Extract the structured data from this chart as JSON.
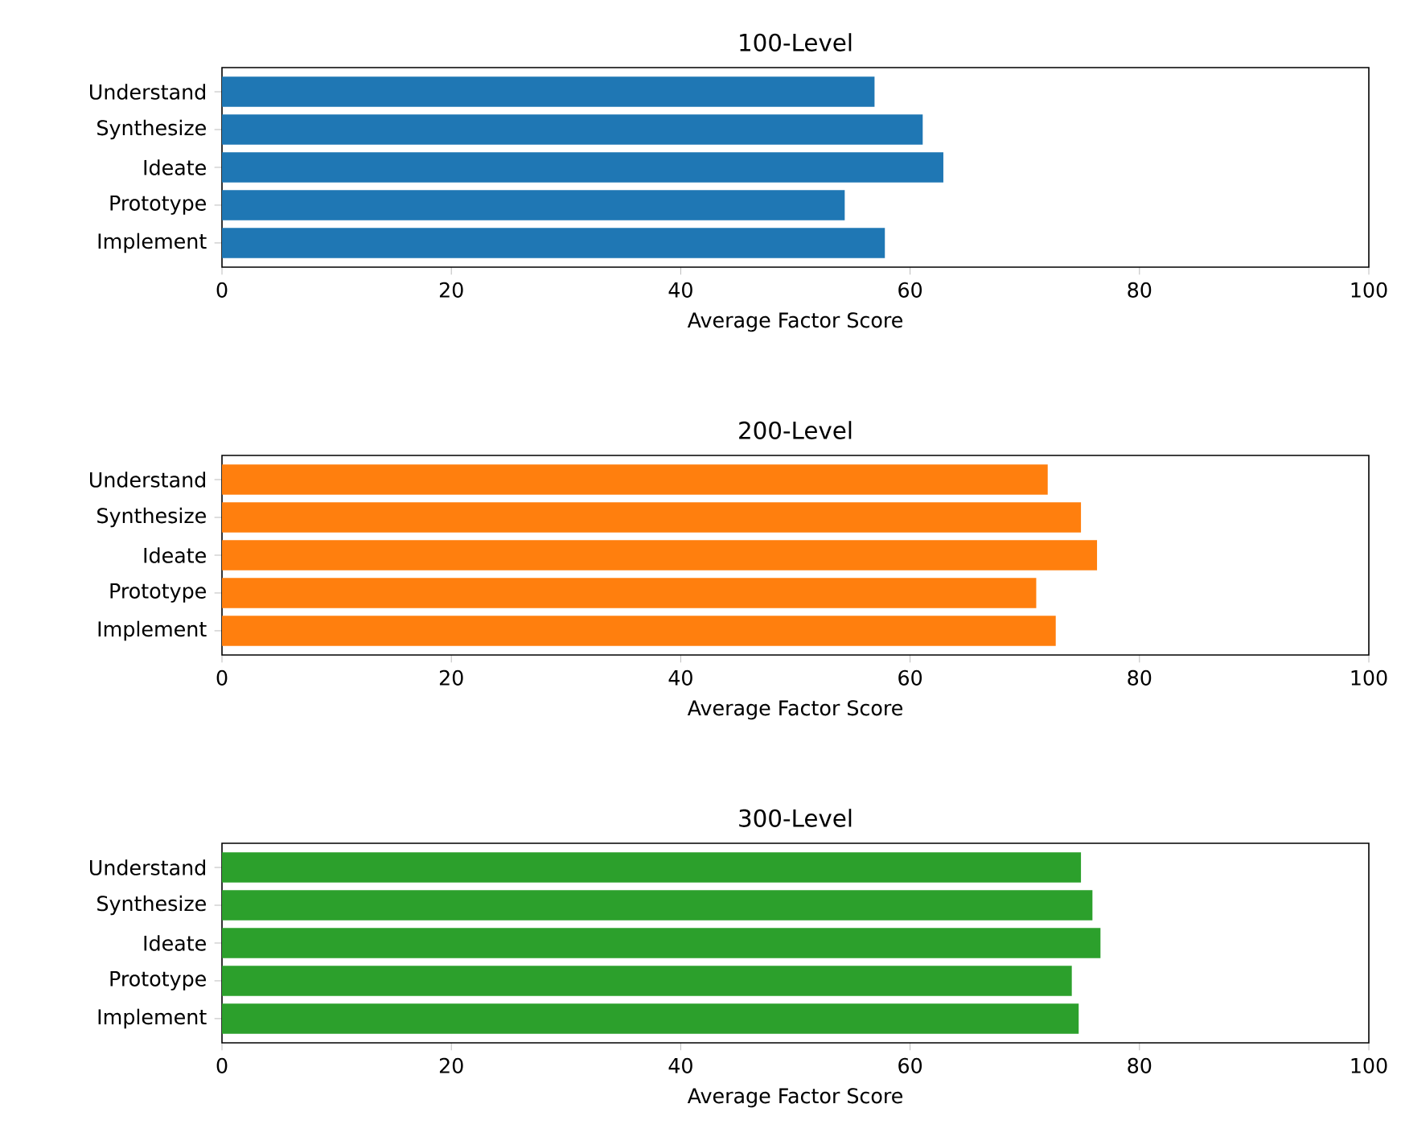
{
  "chart_data": [
    {
      "type": "bar",
      "orientation": "horizontal",
      "title": "100-Level",
      "xlabel": "Average Factor Score",
      "categories": [
        "Understand",
        "Synthesize",
        "Ideate",
        "Prototype",
        "Implement"
      ],
      "values": [
        56.9,
        61.1,
        62.9,
        54.3,
        57.8
      ],
      "color": "#1f77b4",
      "xlim": [
        0,
        100
      ],
      "xticks": [
        0,
        20,
        40,
        60,
        80,
        100
      ]
    },
    {
      "type": "bar",
      "orientation": "horizontal",
      "title": "200-Level",
      "xlabel": "Average Factor Score",
      "categories": [
        "Understand",
        "Synthesize",
        "Ideate",
        "Prototype",
        "Implement"
      ],
      "values": [
        72.0,
        74.9,
        76.3,
        71.0,
        72.7
      ],
      "color": "#ff7f0e",
      "xlim": [
        0,
        100
      ],
      "xticks": [
        0,
        20,
        40,
        60,
        80,
        100
      ]
    },
    {
      "type": "bar",
      "orientation": "horizontal",
      "title": "300-Level",
      "xlabel": "Average Factor Score",
      "categories": [
        "Understand",
        "Synthesize",
        "Ideate",
        "Prototype",
        "Implement"
      ],
      "values": [
        74.9,
        75.9,
        76.6,
        74.1,
        74.7
      ],
      "color": "#2ca02c",
      "xlim": [
        0,
        100
      ],
      "xticks": [
        0,
        20,
        40,
        60,
        80,
        100
      ]
    }
  ]
}
